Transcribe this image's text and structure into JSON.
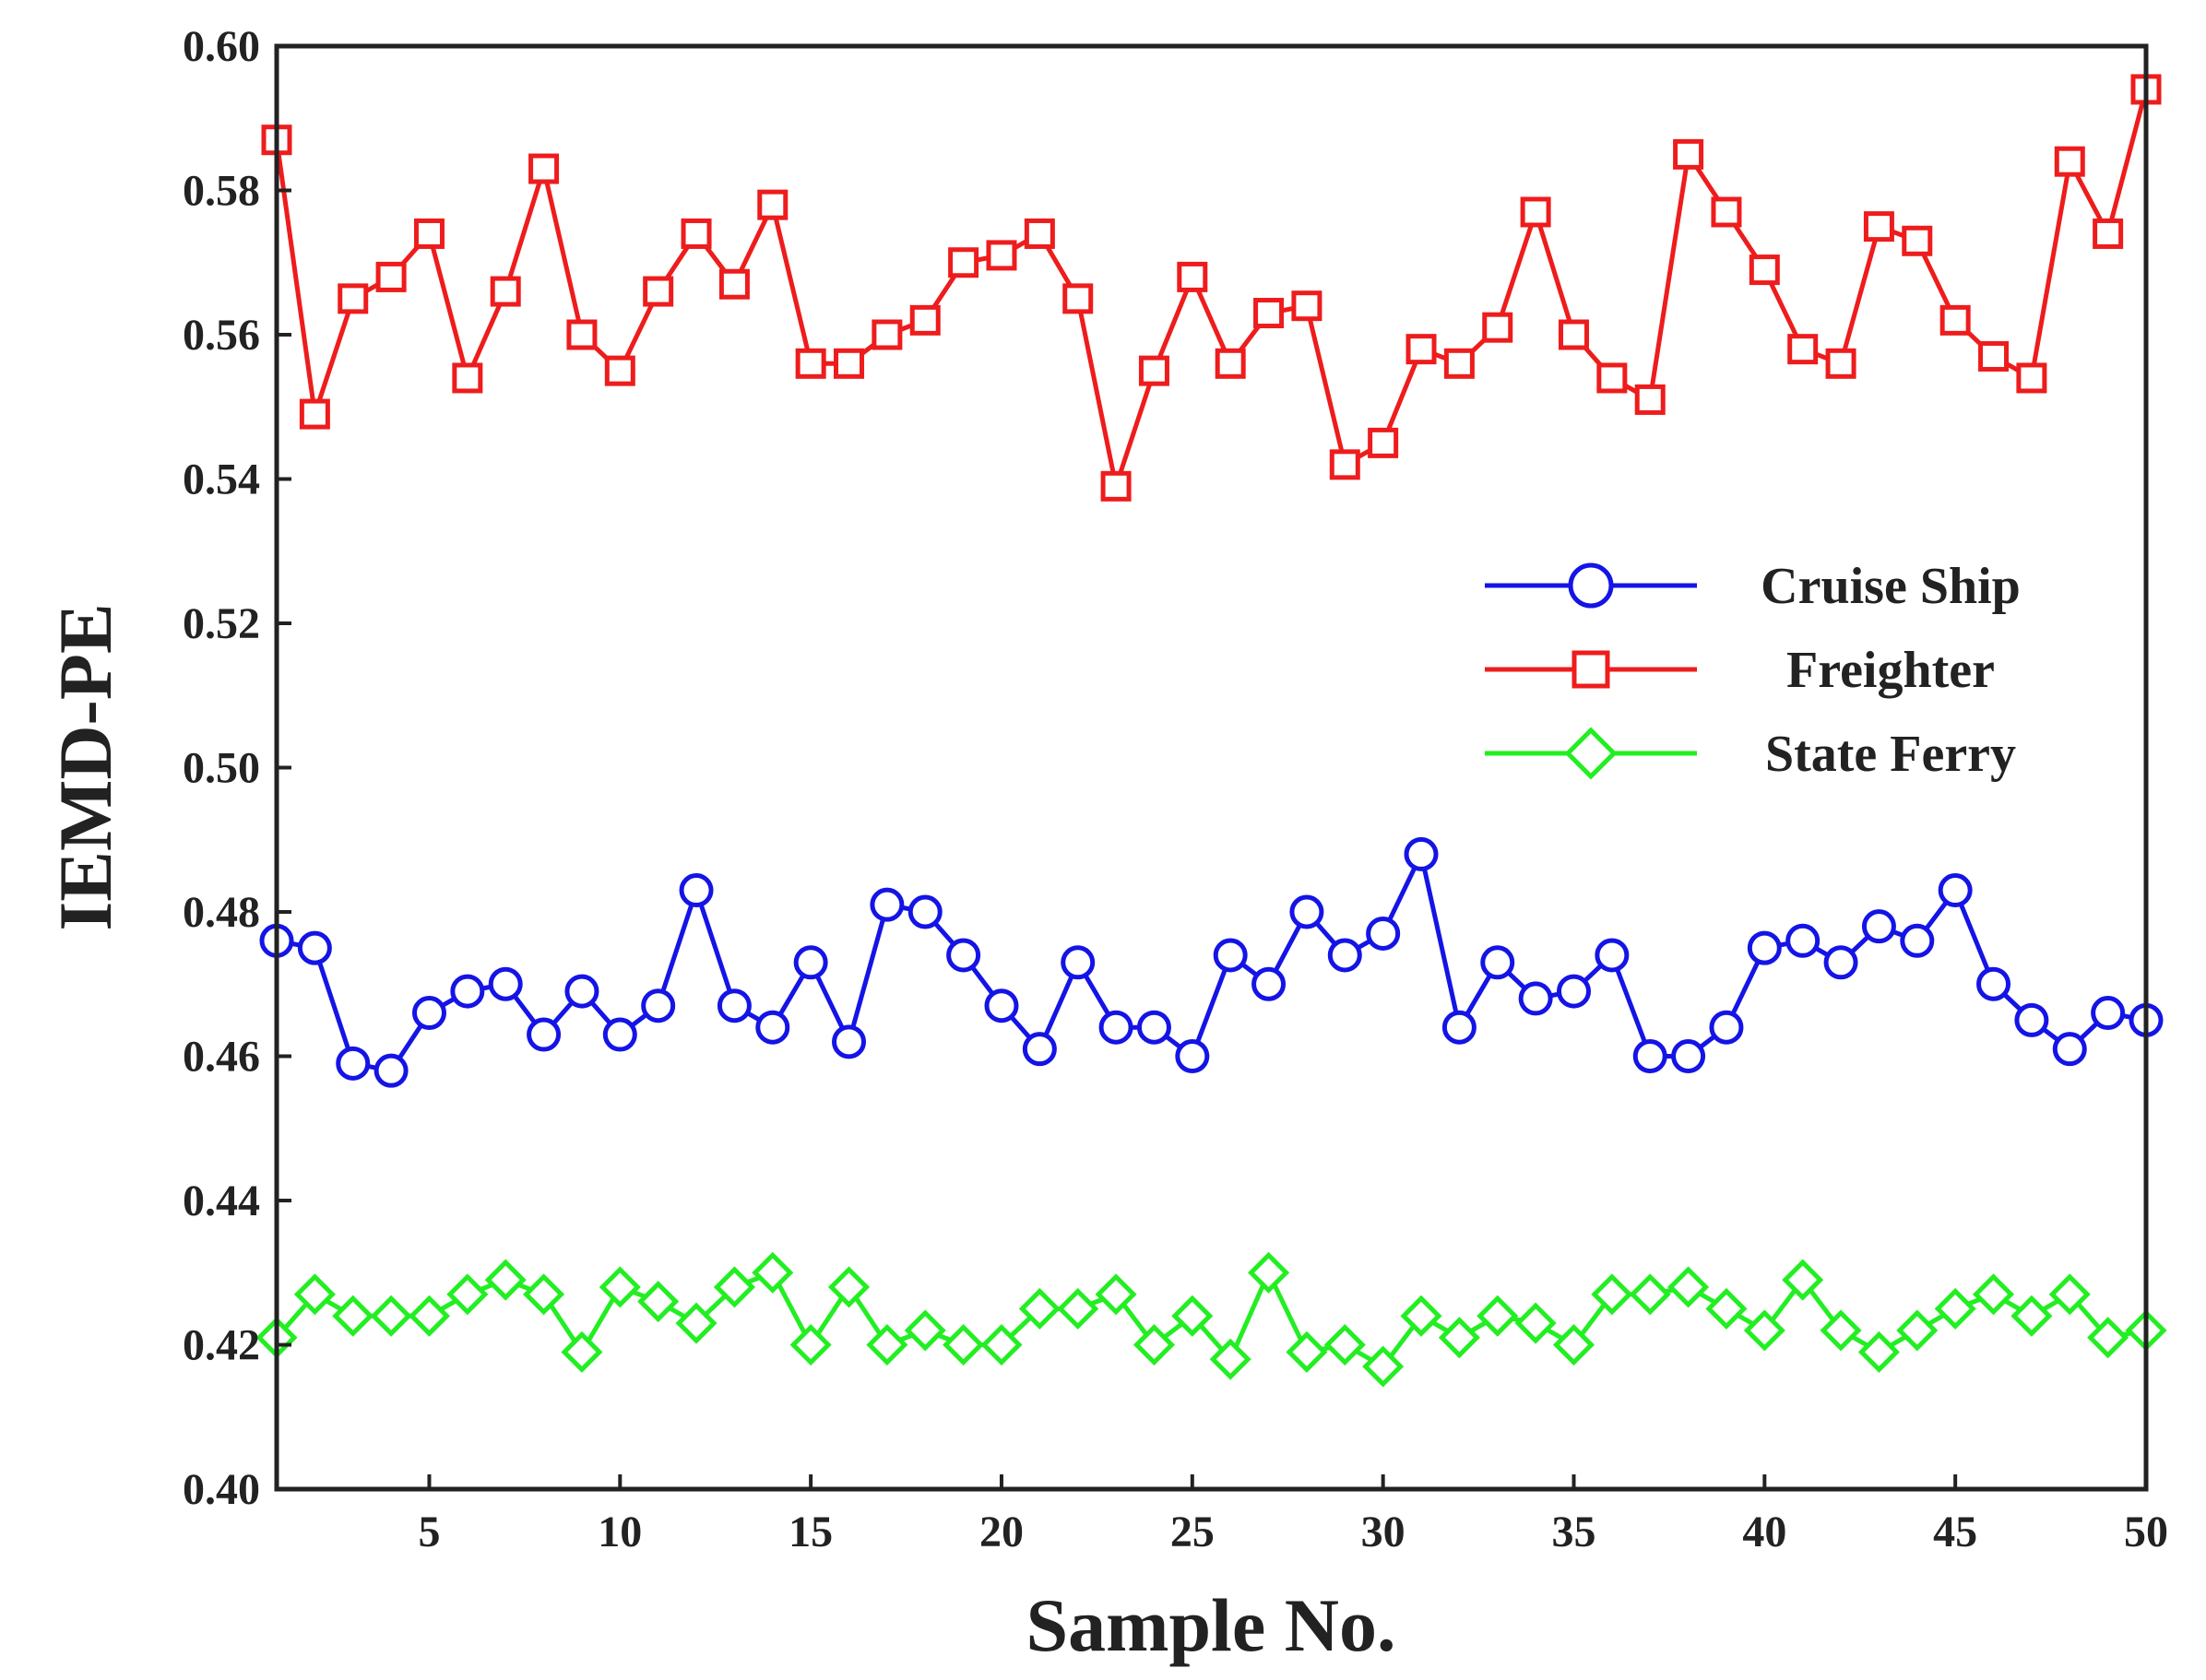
{
  "chart_data": {
    "type": "line",
    "title": "",
    "xlabel": "Sample No.",
    "ylabel": "IEMD-PE",
    "xlim": [
      1,
      50
    ],
    "ylim": [
      0.4,
      0.6
    ],
    "x_ticks": [
      5,
      10,
      15,
      20,
      25,
      30,
      35,
      40,
      45,
      50
    ],
    "y_ticks": [
      "0.40",
      "0.42",
      "0.44",
      "0.46",
      "0.48",
      "0.50",
      "0.52",
      "0.54",
      "0.56",
      "0.58",
      "0.60"
    ],
    "grid": false,
    "legend_position": "center-right",
    "x": [
      1,
      2,
      3,
      4,
      5,
      6,
      7,
      8,
      9,
      10,
      11,
      12,
      13,
      14,
      15,
      16,
      17,
      18,
      19,
      20,
      21,
      22,
      23,
      24,
      25,
      26,
      27,
      28,
      29,
      30,
      31,
      32,
      33,
      34,
      35,
      36,
      37,
      38,
      39,
      40,
      41,
      42,
      43,
      44,
      45,
      46,
      47,
      48,
      49,
      50
    ],
    "series": [
      {
        "name": "Cruise Ship",
        "color": "#1414e6",
        "marker": "circle",
        "values": [
          0.476,
          0.475,
          0.459,
          0.458,
          0.466,
          0.469,
          0.47,
          0.463,
          0.469,
          0.463,
          0.467,
          0.483,
          0.467,
          0.464,
          0.473,
          0.462,
          0.481,
          0.48,
          0.474,
          0.467,
          0.461,
          0.473,
          0.464,
          0.464,
          0.46,
          0.474,
          0.47,
          0.48,
          0.474,
          0.477,
          0.488,
          0.464,
          0.473,
          0.468,
          0.469,
          0.474,
          0.46,
          0.46,
          0.464,
          0.475,
          0.476,
          0.473,
          0.478,
          0.476,
          0.483,
          0.47,
          0.465,
          0.461,
          0.466,
          0.465
        ]
      },
      {
        "name": "Freighter",
        "color": "#ee1c1c",
        "marker": "square",
        "values": [
          0.587,
          0.549,
          0.565,
          0.568,
          0.574,
          0.554,
          0.566,
          0.583,
          0.56,
          0.555,
          0.566,
          0.574,
          0.567,
          0.578,
          0.556,
          0.556,
          0.56,
          0.562,
          0.57,
          0.571,
          0.574,
          0.565,
          0.539,
          0.555,
          0.568,
          0.556,
          0.563,
          0.564,
          0.542,
          0.545,
          0.558,
          0.556,
          0.561,
          0.577,
          0.56,
          0.554,
          0.551,
          0.585,
          0.577,
          0.569,
          0.558,
          0.556,
          0.575,
          0.573,
          0.562,
          0.557,
          0.554,
          0.584,
          0.574,
          0.594
        ]
      },
      {
        "name": "State Ferry",
        "color": "#22ee22",
        "marker": "diamond",
        "values": [
          0.421,
          0.427,
          0.424,
          0.424,
          0.424,
          0.427,
          0.429,
          0.427,
          0.419,
          0.428,
          0.426,
          0.423,
          0.428,
          0.43,
          0.42,
          0.428,
          0.42,
          0.422,
          0.42,
          0.42,
          0.425,
          0.425,
          0.427,
          0.42,
          0.424,
          0.418,
          0.43,
          0.419,
          0.42,
          0.417,
          0.424,
          0.421,
          0.424,
          0.423,
          0.42,
          0.427,
          0.427,
          0.428,
          0.425,
          0.422,
          0.429,
          0.422,
          0.419,
          0.422,
          0.425,
          0.427,
          0.424,
          0.427,
          0.421,
          0.422
        ]
      }
    ]
  }
}
